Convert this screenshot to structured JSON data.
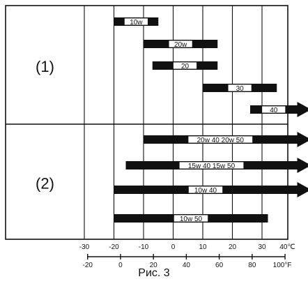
{
  "chart_data": {
    "type": "range-bar",
    "groups": [
      {
        "label": "(1)",
        "bars": [
          {
            "label": "10w",
            "from": -20,
            "to": -5,
            "extends": false
          },
          {
            "label": "20w",
            "from": -10,
            "to": 15,
            "extends": false
          },
          {
            "label": "20",
            "from": -7,
            "to": 15,
            "extends": false
          },
          {
            "label": "30",
            "from": 10,
            "to": 35,
            "extends": false
          },
          {
            "label": "40",
            "from": 26,
            "to": 40,
            "extends": true
          }
        ]
      },
      {
        "label": "(2)",
        "bars": [
          {
            "label": "20w 40 20w 50",
            "from": -10,
            "to": 40,
            "extends": true
          },
          {
            "label": "15w 40 15w 50",
            "from": -16,
            "to": 40,
            "extends": true
          },
          {
            "label": "10w 40",
            "from": -20,
            "to": 40,
            "extends": true
          },
          {
            "label": "10w 50",
            "from": -20,
            "to": 32,
            "extends": false
          }
        ]
      }
    ],
    "celsius_ticks": [
      "-30",
      "-20",
      "-10",
      "0",
      "10",
      "20",
      "30",
      "40℃"
    ],
    "fahrenheit_ticks": [
      "-20",
      "0",
      "20",
      "40",
      "60",
      "80",
      "100°F"
    ],
    "xlim_celsius": [
      -30,
      40
    ]
  },
  "caption": "Рис. 3"
}
